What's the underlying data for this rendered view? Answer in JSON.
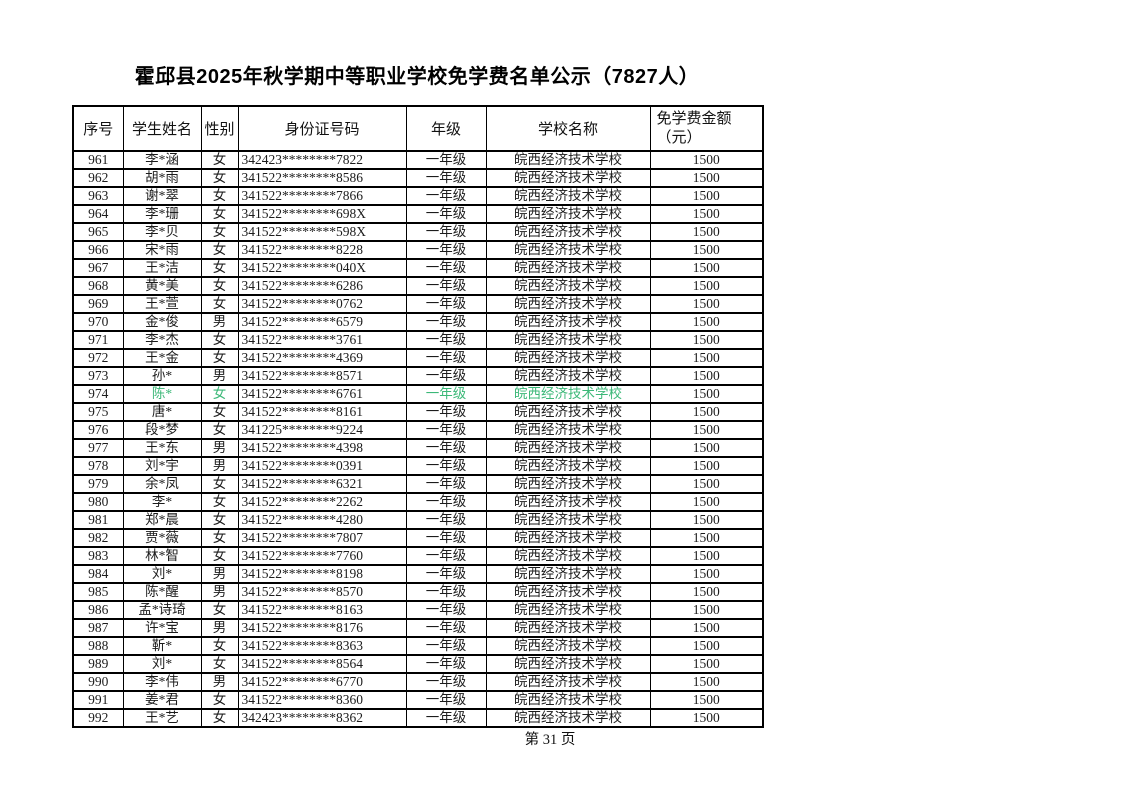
{
  "title": "霍邱县2025年秋学期中等职业学校免学费名单公示（7827人）",
  "footer": {
    "page_label": "第 31 页"
  },
  "colors": {
    "highlight_green": "#3cb878",
    "text": "#1c1c1c",
    "border": "#000000"
  },
  "table": {
    "headers": [
      "序号",
      "学生姓名",
      "性别",
      "身份证号码",
      "年级",
      "学校名称",
      "免学费金额\n（元）"
    ],
    "rows": [
      {
        "no": "961",
        "name": "李*涵",
        "gender": "女",
        "id": "342423********7822",
        "grade": "一年级",
        "school": "皖西经济技术学校",
        "amount": "1500",
        "highlight": false
      },
      {
        "no": "962",
        "name": "胡*雨",
        "gender": "女",
        "id": "341522********8586",
        "grade": "一年级",
        "school": "皖西经济技术学校",
        "amount": "1500",
        "highlight": false
      },
      {
        "no": "963",
        "name": "谢*翠",
        "gender": "女",
        "id": "341522********7866",
        "grade": "一年级",
        "school": "皖西经济技术学校",
        "amount": "1500",
        "highlight": false
      },
      {
        "no": "964",
        "name": "李*珊",
        "gender": "女",
        "id": "341522********698X",
        "grade": "一年级",
        "school": "皖西经济技术学校",
        "amount": "1500",
        "highlight": false
      },
      {
        "no": "965",
        "name": "李*贝",
        "gender": "女",
        "id": "341522********598X",
        "grade": "一年级",
        "school": "皖西经济技术学校",
        "amount": "1500",
        "highlight": false
      },
      {
        "no": "966",
        "name": "宋*雨",
        "gender": "女",
        "id": "341522********8228",
        "grade": "一年级",
        "school": "皖西经济技术学校",
        "amount": "1500",
        "highlight": false
      },
      {
        "no": "967",
        "name": "王*洁",
        "gender": "女",
        "id": "341522********040X",
        "grade": "一年级",
        "school": "皖西经济技术学校",
        "amount": "1500",
        "highlight": false
      },
      {
        "no": "968",
        "name": "黄*美",
        "gender": "女",
        "id": "341522********6286",
        "grade": "一年级",
        "school": "皖西经济技术学校",
        "amount": "1500",
        "highlight": false
      },
      {
        "no": "969",
        "name": "王*萱",
        "gender": "女",
        "id": "341522********0762",
        "grade": "一年级",
        "school": "皖西经济技术学校",
        "amount": "1500",
        "highlight": false
      },
      {
        "no": "970",
        "name": "金*俊",
        "gender": "男",
        "id": "341522********6579",
        "grade": "一年级",
        "school": "皖西经济技术学校",
        "amount": "1500",
        "highlight": false
      },
      {
        "no": "971",
        "name": "李*杰",
        "gender": "女",
        "id": "341522********3761",
        "grade": "一年级",
        "school": "皖西经济技术学校",
        "amount": "1500",
        "highlight": false
      },
      {
        "no": "972",
        "name": "王*金",
        "gender": "女",
        "id": "341522********4369",
        "grade": "一年级",
        "school": "皖西经济技术学校",
        "amount": "1500",
        "highlight": false
      },
      {
        "no": "973",
        "name": "孙*",
        "gender": "男",
        "id": "341522********8571",
        "grade": "一年级",
        "school": "皖西经济技术学校",
        "amount": "1500",
        "highlight": false
      },
      {
        "no": "974",
        "name": "陈*",
        "gender": "女",
        "id": "341522********6761",
        "grade": "一年级",
        "school": "皖西经济技术学校",
        "amount": "1500",
        "highlight": true
      },
      {
        "no": "975",
        "name": "唐*",
        "gender": "女",
        "id": "341522********8161",
        "grade": "一年级",
        "school": "皖西经济技术学校",
        "amount": "1500",
        "highlight": false
      },
      {
        "no": "976",
        "name": "段*梦",
        "gender": "女",
        "id": "341225********9224",
        "grade": "一年级",
        "school": "皖西经济技术学校",
        "amount": "1500",
        "highlight": false
      },
      {
        "no": "977",
        "name": "王*东",
        "gender": "男",
        "id": "341522********4398",
        "grade": "一年级",
        "school": "皖西经济技术学校",
        "amount": "1500",
        "highlight": false
      },
      {
        "no": "978",
        "name": "刘*宇",
        "gender": "男",
        "id": "341522********0391",
        "grade": "一年级",
        "school": "皖西经济技术学校",
        "amount": "1500",
        "highlight": false
      },
      {
        "no": "979",
        "name": "余*凤",
        "gender": "女",
        "id": "341522********6321",
        "grade": "一年级",
        "school": "皖西经济技术学校",
        "amount": "1500",
        "highlight": false
      },
      {
        "no": "980",
        "name": "李*",
        "gender": "女",
        "id": "341522********2262",
        "grade": "一年级",
        "school": "皖西经济技术学校",
        "amount": "1500",
        "highlight": false
      },
      {
        "no": "981",
        "name": "郑*晨",
        "gender": "女",
        "id": "341522********4280",
        "grade": "一年级",
        "school": "皖西经济技术学校",
        "amount": "1500",
        "highlight": false
      },
      {
        "no": "982",
        "name": "贾*薇",
        "gender": "女",
        "id": "341522********7807",
        "grade": "一年级",
        "school": "皖西经济技术学校",
        "amount": "1500",
        "highlight": false
      },
      {
        "no": "983",
        "name": "林*智",
        "gender": "女",
        "id": "341522********7760",
        "grade": "一年级",
        "school": "皖西经济技术学校",
        "amount": "1500",
        "highlight": false
      },
      {
        "no": "984",
        "name": "刘*",
        "gender": "男",
        "id": "341522********8198",
        "grade": "一年级",
        "school": "皖西经济技术学校",
        "amount": "1500",
        "highlight": false
      },
      {
        "no": "985",
        "name": "陈*醒",
        "gender": "男",
        "id": "341522********8570",
        "grade": "一年级",
        "school": "皖西经济技术学校",
        "amount": "1500",
        "highlight": false
      },
      {
        "no": "986",
        "name": "孟*诗琦",
        "gender": "女",
        "id": "341522********8163",
        "grade": "一年级",
        "school": "皖西经济技术学校",
        "amount": "1500",
        "highlight": false
      },
      {
        "no": "987",
        "name": "许*宝",
        "gender": "男",
        "id": "341522********8176",
        "grade": "一年级",
        "school": "皖西经济技术学校",
        "amount": "1500",
        "highlight": false
      },
      {
        "no": "988",
        "name": "靳*",
        "gender": "女",
        "id": "341522********8363",
        "grade": "一年级",
        "school": "皖西经济技术学校",
        "amount": "1500",
        "highlight": false
      },
      {
        "no": "989",
        "name": "刘*",
        "gender": "女",
        "id": "341522********8564",
        "grade": "一年级",
        "school": "皖西经济技术学校",
        "amount": "1500",
        "highlight": false
      },
      {
        "no": "990",
        "name": "李*伟",
        "gender": "男",
        "id": "341522********6770",
        "grade": "一年级",
        "school": "皖西经济技术学校",
        "amount": "1500",
        "highlight": false
      },
      {
        "no": "991",
        "name": "姜*君",
        "gender": "女",
        "id": "341522********8360",
        "grade": "一年级",
        "school": "皖西经济技术学校",
        "amount": "1500",
        "highlight": false
      },
      {
        "no": "992",
        "name": "王*艺",
        "gender": "女",
        "id": "342423********8362",
        "grade": "一年级",
        "school": "皖西经济技术学校",
        "amount": "1500",
        "highlight": false
      }
    ]
  }
}
